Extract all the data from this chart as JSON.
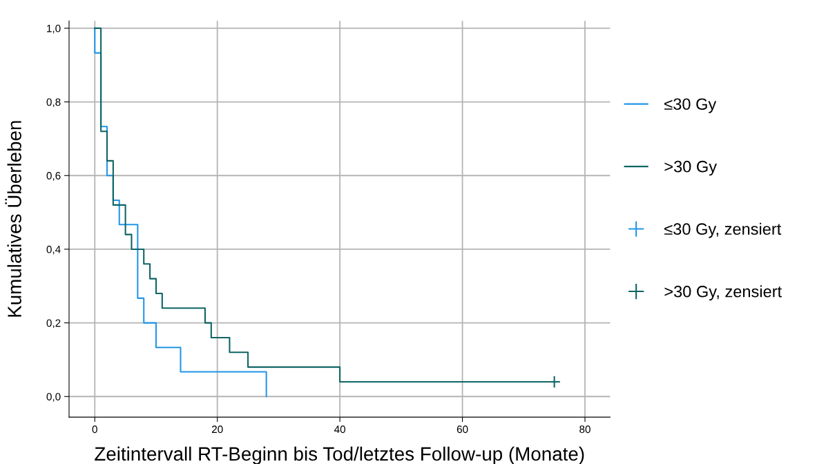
{
  "chart_data": {
    "type": "step",
    "xlabel": "Zeitintervall RT-Beginn bis Tod/letztes Follow-up (Monate)",
    "ylabel": "Kumulatives Überleben",
    "series": [
      {
        "name": "≤30 Gy",
        "color": "#2196e8",
        "x": [
          0,
          0,
          1,
          2,
          3,
          4,
          7,
          8,
          10,
          14,
          28
        ],
        "values": [
          1.0,
          0.933,
          0.733,
          0.6,
          0.533,
          0.467,
          0.267,
          0.2,
          0.133,
          0.067,
          0.0
        ]
      },
      {
        "name": ">30 Gy",
        "color": "#0e6464",
        "x": [
          0,
          1,
          2,
          3,
          5,
          6,
          8,
          9,
          10,
          11,
          18,
          19,
          22,
          25,
          40,
          75
        ],
        "values": [
          1.0,
          0.72,
          0.64,
          0.52,
          0.44,
          0.4,
          0.36,
          0.32,
          0.28,
          0.24,
          0.2,
          0.16,
          0.12,
          0.08,
          0.04,
          0.04
        ]
      },
      {
        "name": "≤30 Gy, zensiert",
        "type": "scatter",
        "marker": "cross",
        "color": "#2196e8"
      },
      {
        "name": ">30 Gy, zensiert",
        "type": "scatter",
        "marker": "cross",
        "color": "#0e6464",
        "x": [
          75
        ],
        "values": [
          0.04
        ]
      }
    ],
    "xlim": [
      -4.2,
      84.1
    ],
    "ylim": [
      -0.056,
      1.02
    ],
    "xticks": [
      0,
      20,
      40,
      60,
      80
    ],
    "yticks": [
      {
        "value": 0.0,
        "label": "0,0"
      },
      {
        "value": 0.2,
        "label": "0,2"
      },
      {
        "value": 0.4,
        "label": "0,4"
      },
      {
        "value": 0.6,
        "label": "0,6"
      },
      {
        "value": 0.8,
        "label": "0,8"
      },
      {
        "value": 1.0,
        "label": "1,0"
      }
    ],
    "grid": true,
    "legend": "right"
  }
}
